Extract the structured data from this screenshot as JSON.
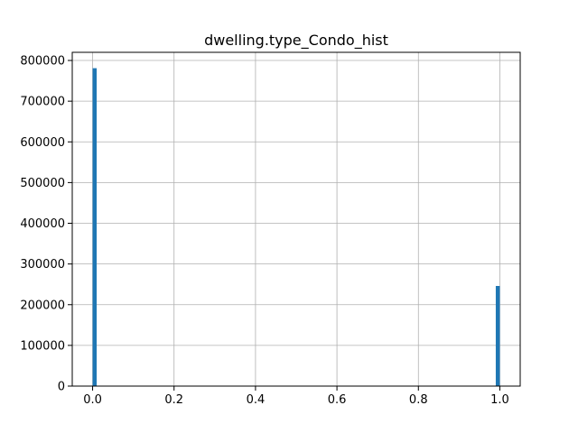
{
  "chart_data": {
    "type": "bar",
    "title": "dwelling.type_Condo_hist",
    "xlabel": "",
    "ylabel": "",
    "grid": true,
    "bin_width": 0.01,
    "bars": [
      {
        "x": 0.0,
        "value": 781000
      },
      {
        "x": 0.99,
        "value": 246000
      }
    ],
    "xlim": [
      -0.05,
      1.05
    ],
    "ylim": [
      0,
      820000
    ],
    "xticks": [
      {
        "value": 0.0,
        "label": "0.0"
      },
      {
        "value": 0.2,
        "label": "0.2"
      },
      {
        "value": 0.4,
        "label": "0.4"
      },
      {
        "value": 0.6,
        "label": "0.6"
      },
      {
        "value": 0.8,
        "label": "0.8"
      },
      {
        "value": 1.0,
        "label": "1.0"
      }
    ],
    "yticks": [
      {
        "value": 0,
        "label": "0"
      },
      {
        "value": 100000,
        "label": "100000"
      },
      {
        "value": 200000,
        "label": "200000"
      },
      {
        "value": 300000,
        "label": "300000"
      },
      {
        "value": 400000,
        "label": "400000"
      },
      {
        "value": 500000,
        "label": "500000"
      },
      {
        "value": 600000,
        "label": "600000"
      },
      {
        "value": 700000,
        "label": "700000"
      },
      {
        "value": 800000,
        "label": "800000"
      }
    ],
    "colors": {
      "bar": "#1f77b4",
      "grid": "#b0b0b0",
      "axis": "#000000"
    }
  }
}
